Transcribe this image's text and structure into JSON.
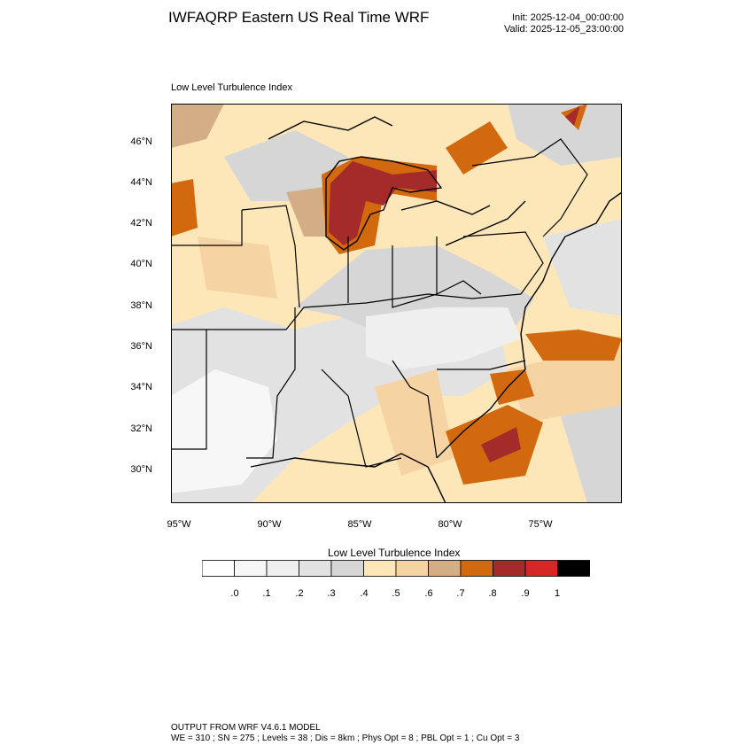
{
  "header": {
    "title": "IWFAQRP Eastern US Real Time WRF",
    "init": "Init: 2025-12-04_00:00:00",
    "valid": "Valid: 2025-12-05_23:00:00"
  },
  "map": {
    "field_label": "Low Level Turbulence Index",
    "lat_labels": [
      "46°N",
      "44°N",
      "42°N",
      "40°N",
      "38°N",
      "36°N",
      "34°N",
      "32°N",
      "30°N"
    ],
    "lon_labels": [
      "95°W",
      "90°W",
      "85°W",
      "80°W",
      "75°W"
    ]
  },
  "colorbar": {
    "title": "Low Level Turbulence Index",
    "tick_labels": [
      ".0",
      ".1",
      ".2",
      ".3",
      ".4",
      ".5",
      ".6",
      ".7",
      ".8",
      ".9",
      "1"
    ],
    "colors": [
      "#ffffff",
      "#f7f7f7",
      "#efefef",
      "#e2e2e2",
      "#d6d6d6",
      "#fde7b8",
      "#f6d3a2",
      "#d3ad86",
      "#d2690e",
      "#a52a2a",
      "#d62728",
      "#000000"
    ]
  },
  "footer": {
    "line1": "OUTPUT FROM WRF V4.6.1 MODEL",
    "line2": "WE = 310 ; SN = 275 ; Levels = 38 ; Dis = 8km ; Phys Opt = 8 ; PBL Opt = 1 ; Cu Opt = 3"
  }
}
